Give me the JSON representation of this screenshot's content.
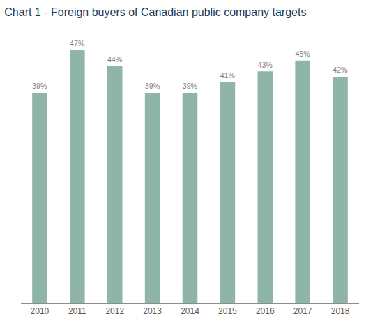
{
  "chart_data": {
    "type": "bar",
    "title": "Chart 1 - Foreign buyers of Canadian public company targets",
    "categories": [
      "2010",
      "2011",
      "2012",
      "2013",
      "2014",
      "2015",
      "2016",
      "2017",
      "2018"
    ],
    "values": [
      39,
      47,
      44,
      39,
      39,
      41,
      43,
      45,
      42
    ],
    "value_labels": [
      "39%",
      "47%",
      "44%",
      "39%",
      "39%",
      "41%",
      "43%",
      "45%",
      "42%"
    ],
    "color": "#8fb5a8",
    "ylim": [
      0,
      50
    ],
    "grid": false,
    "data_labels": true,
    "tick_labels": "x"
  }
}
